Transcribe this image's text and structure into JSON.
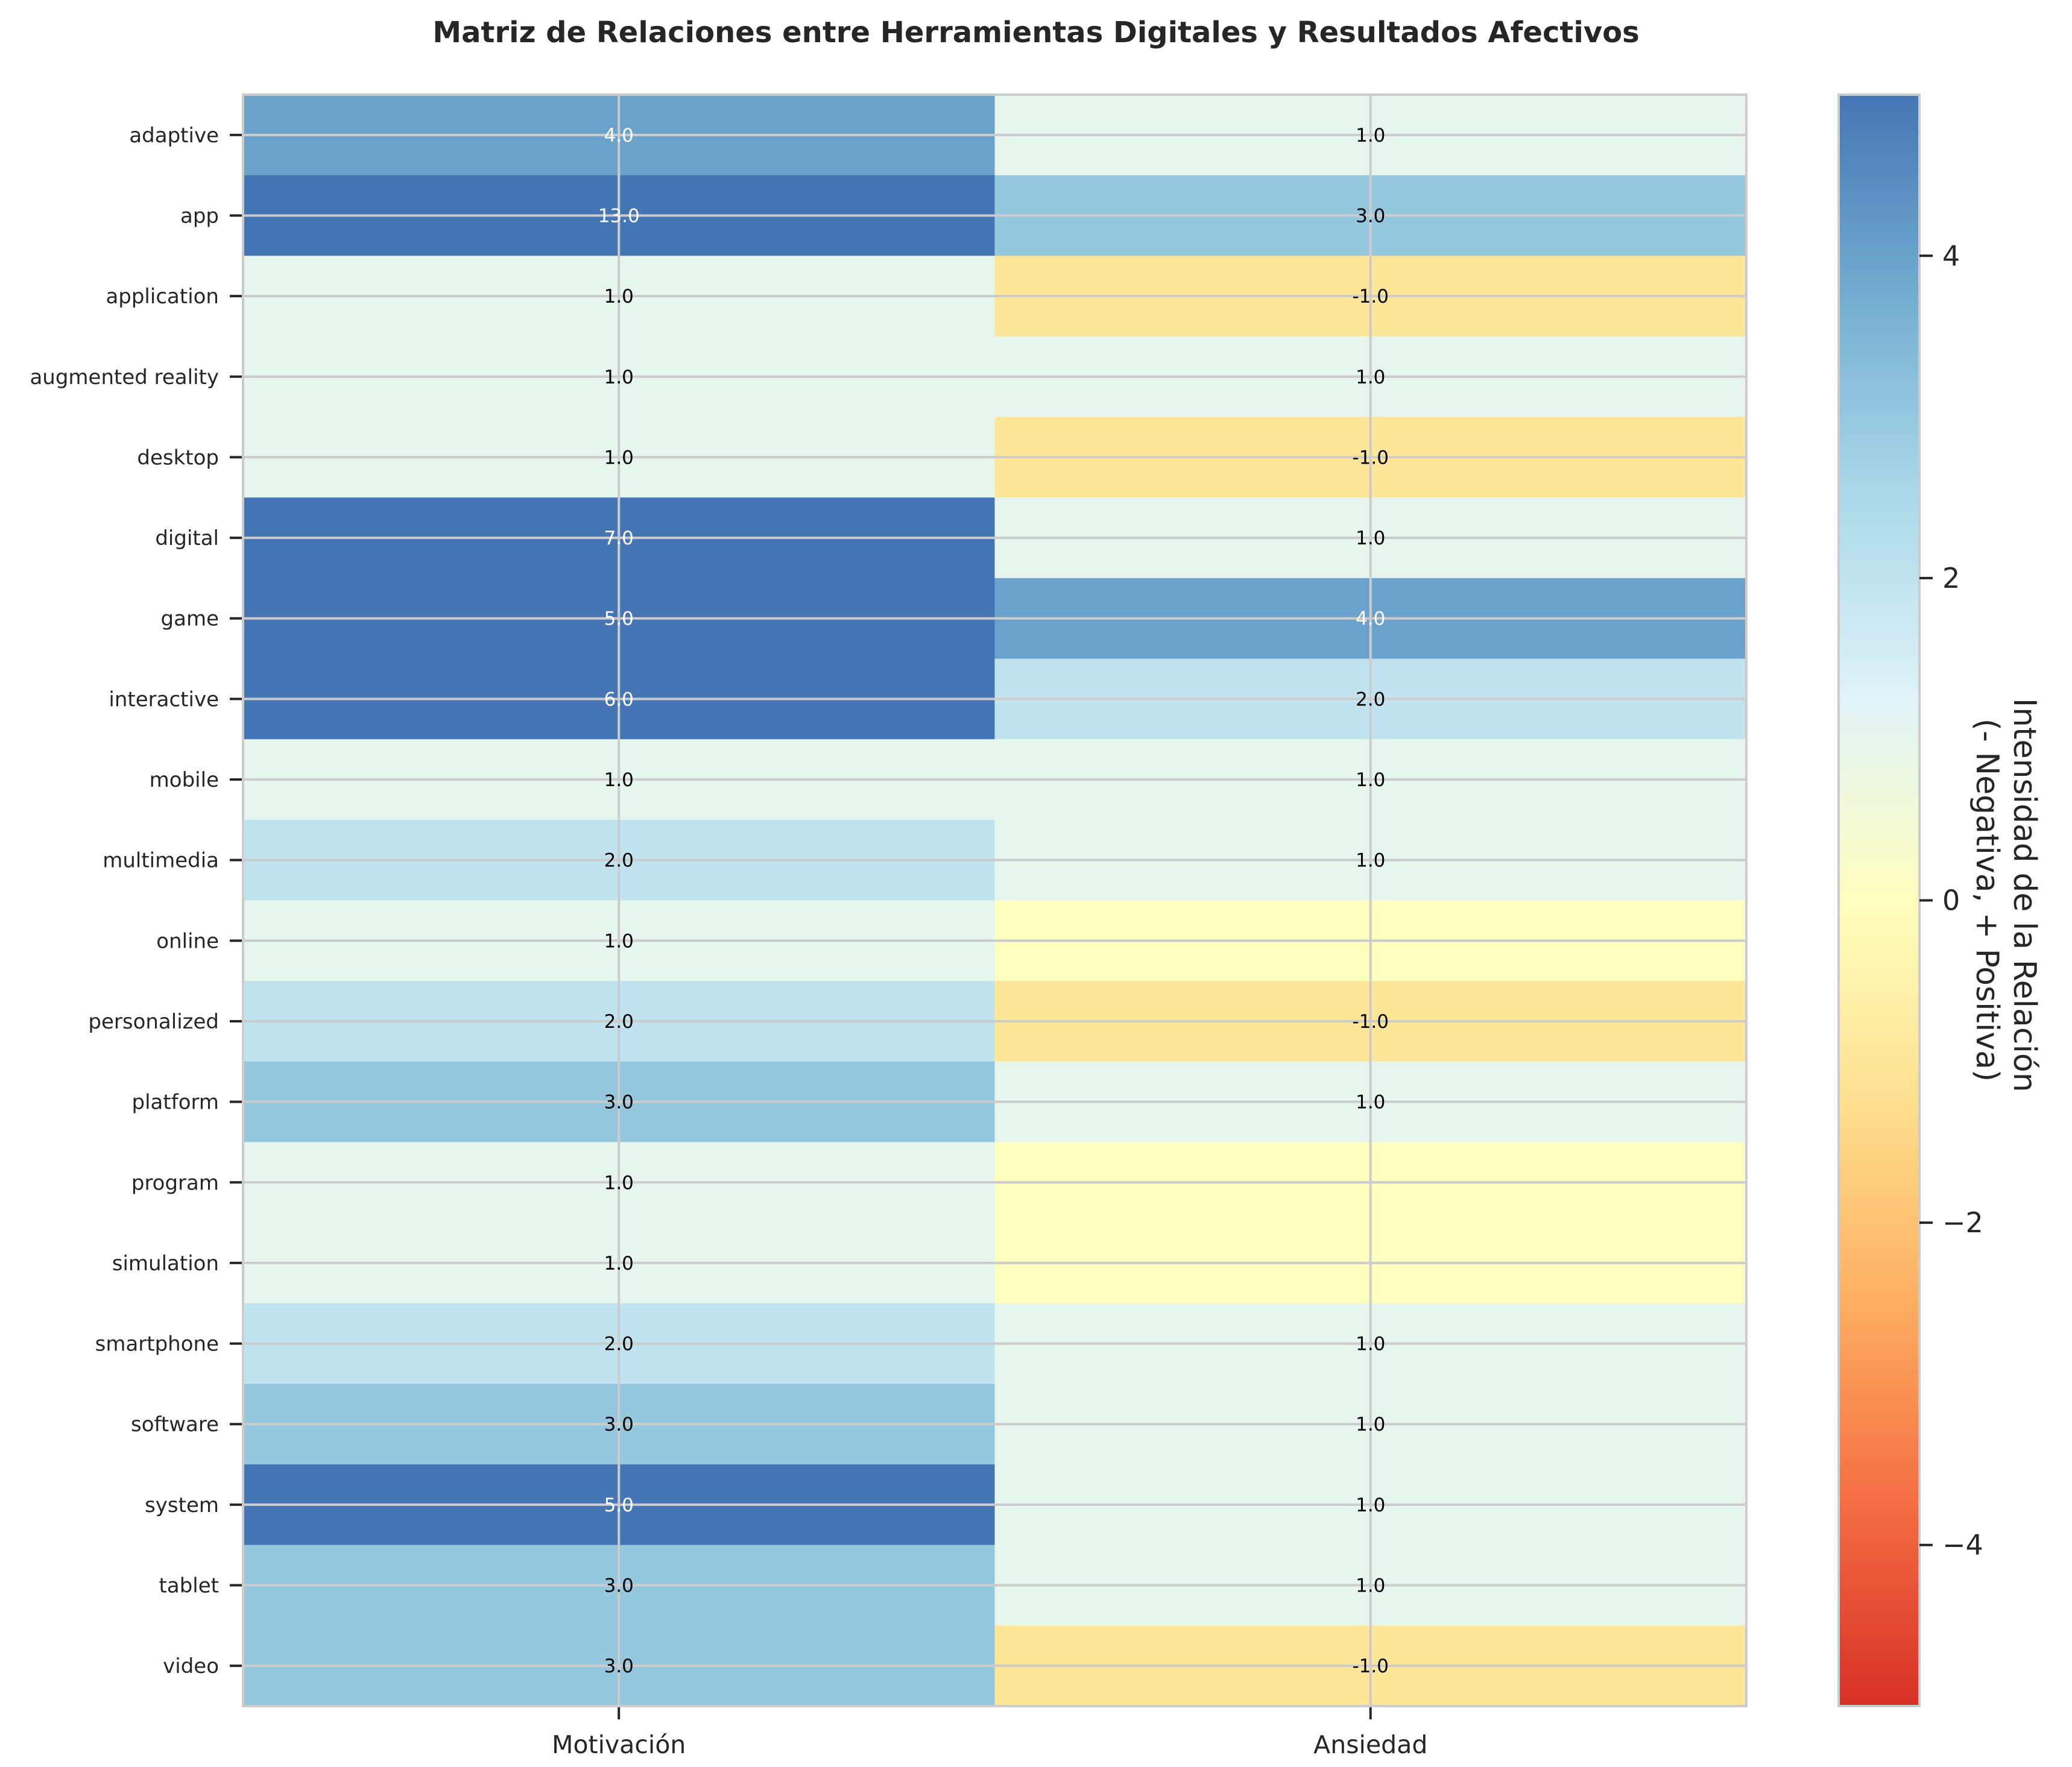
{
  "chart_data": {
    "type": "heatmap",
    "title": "Matriz de Relaciones entre Herramientas Digitales y Resultados Afectivos",
    "columns": [
      "Motivación",
      "Ansiedad"
    ],
    "rows": [
      "adaptive",
      "app",
      "application",
      "augmented reality",
      "desktop",
      "digital",
      "game",
      "interactive",
      "mobile",
      "multimedia",
      "online",
      "personalized",
      "platform",
      "program",
      "simulation",
      "smartphone",
      "software",
      "system",
      "tablet",
      "video"
    ],
    "values": [
      [
        4,
        1
      ],
      [
        13,
        3
      ],
      [
        1,
        -1
      ],
      [
        1,
        1
      ],
      [
        1,
        -1
      ],
      [
        7,
        1
      ],
      [
        5,
        4
      ],
      [
        6,
        2
      ],
      [
        1,
        1
      ],
      [
        2,
        1
      ],
      [
        1,
        0
      ],
      [
        2,
        -1
      ],
      [
        3,
        1
      ],
      [
        1,
        0
      ],
      [
        1,
        0
      ],
      [
        2,
        1
      ],
      [
        3,
        1
      ],
      [
        5,
        1
      ],
      [
        3,
        1
      ],
      [
        3,
        -1
      ]
    ],
    "labels": [
      [
        "4.0",
        "1.0"
      ],
      [
        "13.0",
        "3.0"
      ],
      [
        "1.0",
        "-1.0"
      ],
      [
        "1.0",
        "1.0"
      ],
      [
        "1.0",
        "-1.0"
      ],
      [
        "7.0",
        "1.0"
      ],
      [
        "5.0",
        "4.0"
      ],
      [
        "6.0",
        "2.0"
      ],
      [
        "1.0",
        "1.0"
      ],
      [
        "2.0",
        "1.0"
      ],
      [
        "1.0",
        ""
      ],
      [
        "2.0",
        "-1.0"
      ],
      [
        "3.0",
        "1.0"
      ],
      [
        "1.0",
        ""
      ],
      [
        "1.0",
        ""
      ],
      [
        "2.0",
        "1.0"
      ],
      [
        "3.0",
        "1.0"
      ],
      [
        "5.0",
        "1.0"
      ],
      [
        "3.0",
        "1.0"
      ],
      [
        "3.0",
        "-1.0"
      ]
    ],
    "colorbar": {
      "label_line1": "Intensidad de la Relación",
      "label_line2": "(- Negativa, + Positiva)",
      "range": [
        -5,
        5
      ],
      "ticks": [
        {
          "value": 4,
          "label": "4"
        },
        {
          "value": 2,
          "label": "2"
        },
        {
          "value": 0,
          "label": "0"
        },
        {
          "value": -2,
          "label": "−2"
        },
        {
          "value": -4,
          "label": "−4"
        }
      ],
      "colormap": "RdYlBu",
      "stops": [
        "#d73027",
        "#f46d43",
        "#fdae61",
        "#fee090",
        "#ffffbf",
        "#e0f3f8",
        "#abd9e9",
        "#74add1",
        "#4575b4"
      ]
    },
    "grid": true
  }
}
